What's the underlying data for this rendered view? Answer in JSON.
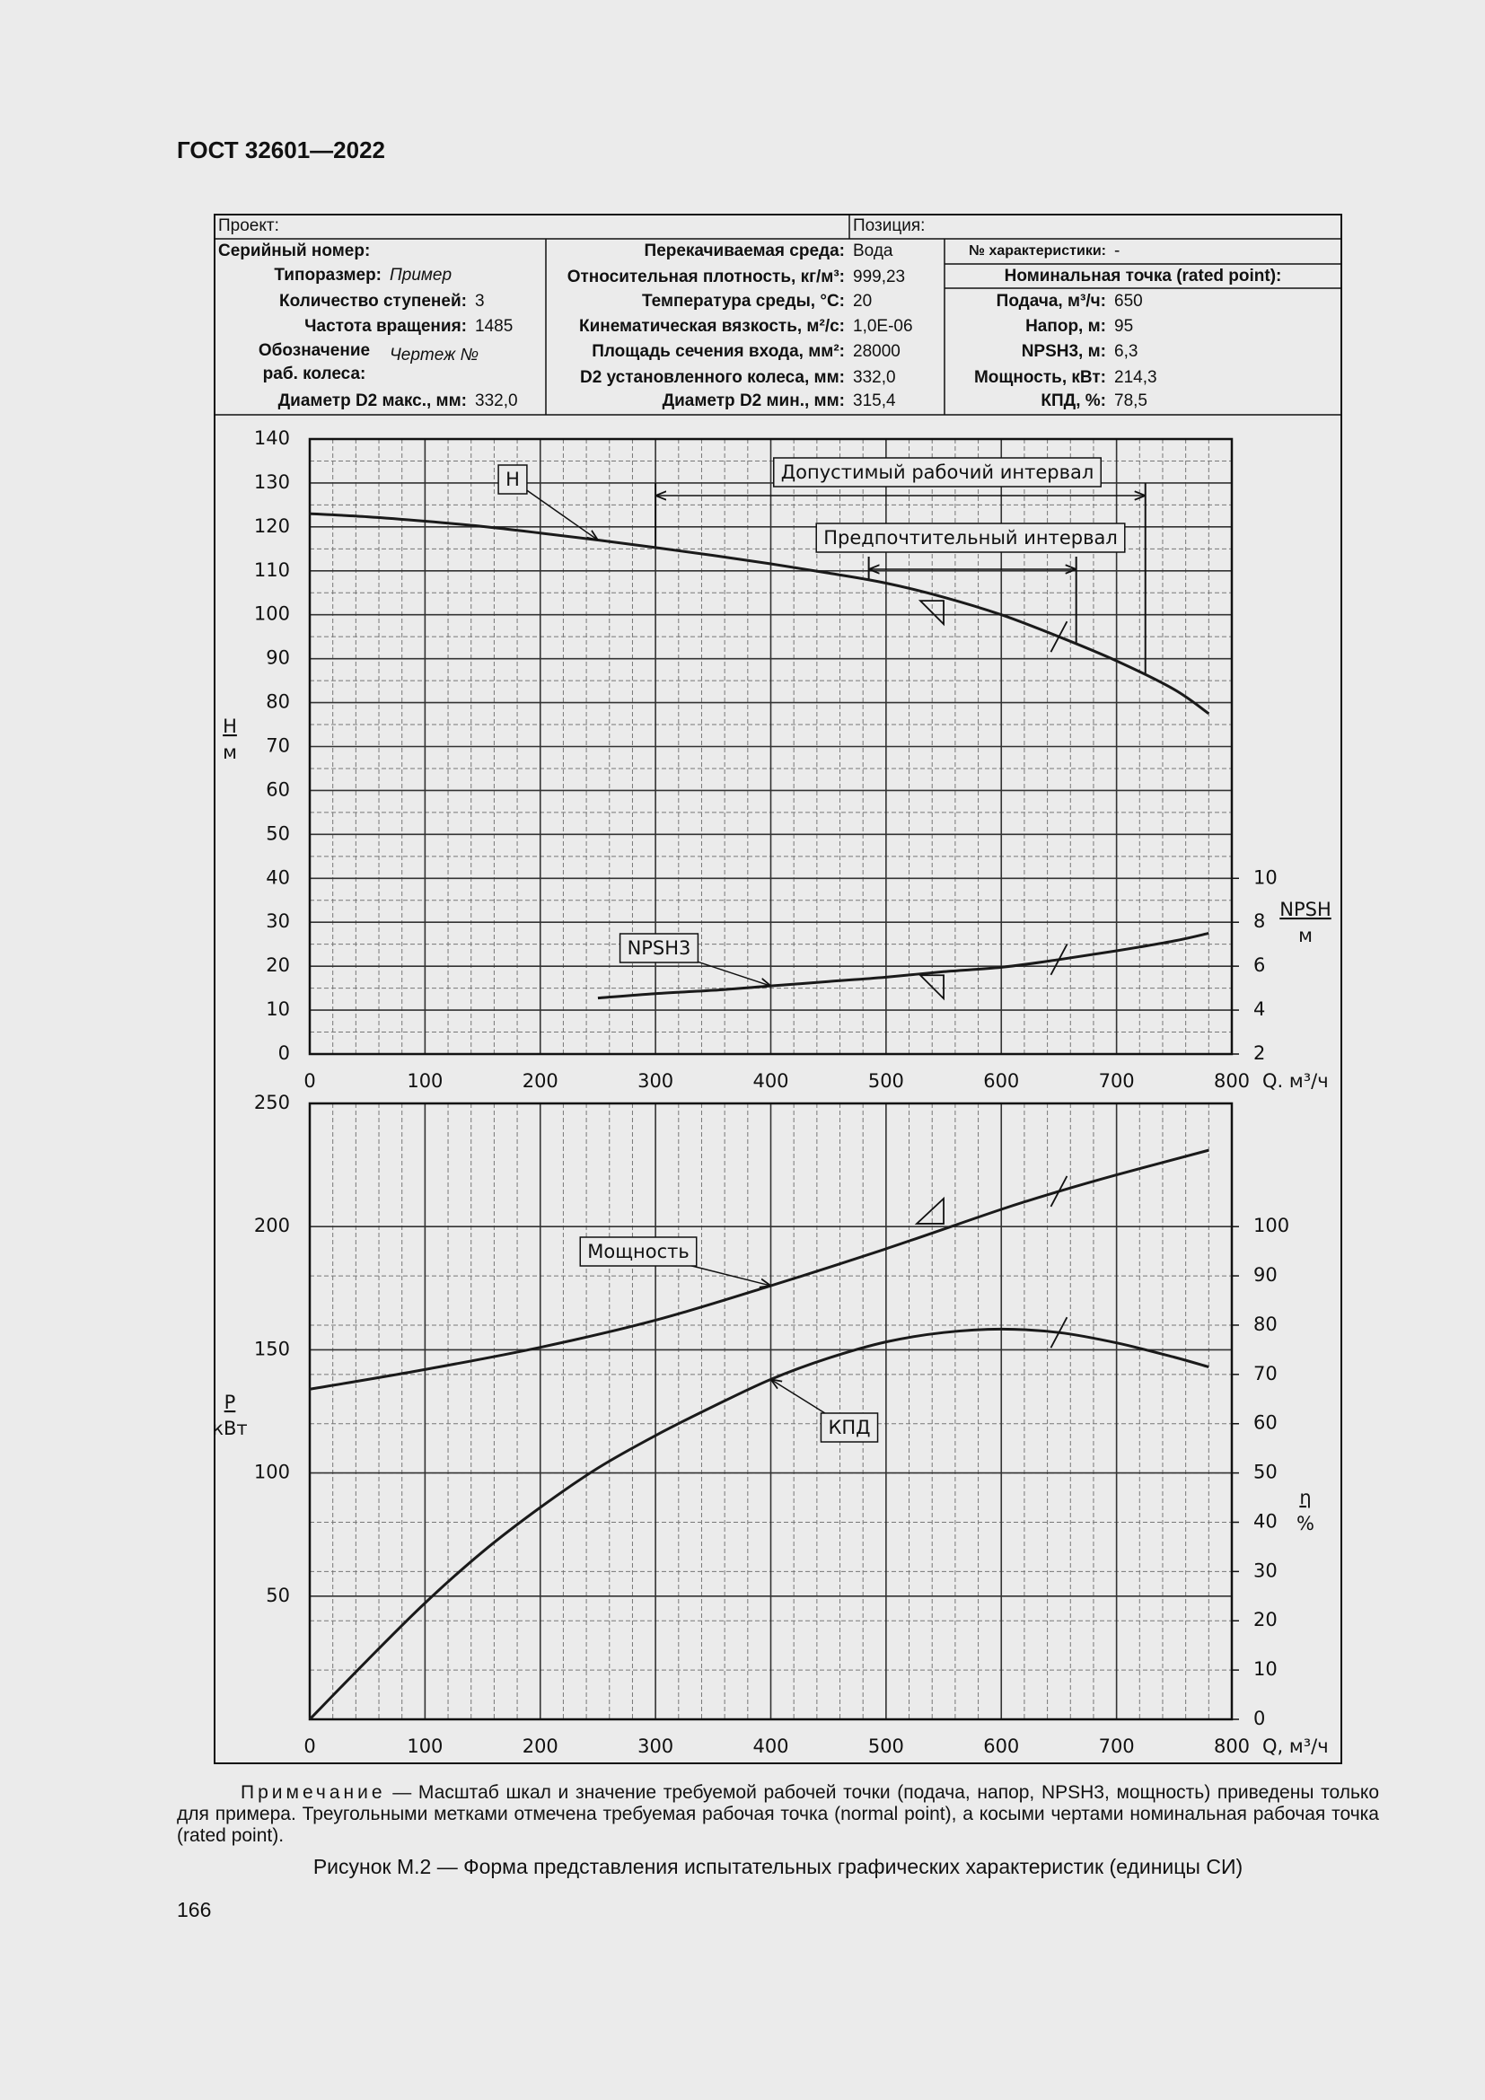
{
  "header": {
    "title": "ГОСТ 32601—2022"
  },
  "info_table": {
    "project": "Проект:",
    "position": "Позиция:",
    "columns": [
      [
        {
          "label": "Серийный номер:"
        },
        {
          "label": "Типоразмер:",
          "value": "Пример"
        },
        {
          "label": "Количество ступеней:",
          "value": "3"
        },
        {
          "label": "Частота вращения:",
          "value": "1485"
        },
        {
          "label": "Обозначение раб. колеса:",
          "value": "Чертеж №"
        },
        {
          "label": "Диаметр D2 макс., мм:",
          "value": "332,0"
        }
      ],
      [
        {
          "label": "Перекачиваемая среда:",
          "value": "Вода"
        },
        {
          "label": "Относительная плотность, кг/м³:",
          "value": "999,23"
        },
        {
          "label": "Температура среды, °С:",
          "value": "20"
        },
        {
          "label": "Кинематическая вязкость, м²/с:",
          "value": "1,0E-06"
        },
        {
          "label": "Площадь сечения входа, мм²:",
          "value": "28000"
        },
        {
          "label": "D2 установленного колеса, мм:",
          "value": "332,0"
        },
        {
          "label": "Диаметр D2 мин., мм:",
          "value": "315,4"
        }
      ],
      [
        {
          "label": "№ характеристики:",
          "value": "-"
        },
        {
          "label": "Номинальная  точка (rated point):"
        },
        {
          "label": "Подача, м³/ч:",
          "value": "650"
        },
        {
          "label": "Напор, м:",
          "value": "95"
        },
        {
          "label": "NPSH3, м:",
          "value": "6,3"
        },
        {
          "label": "Мощность, кВт:",
          "value": "214,3"
        },
        {
          "label": "КПД, %:",
          "value": "78,5"
        }
      ]
    ]
  },
  "chart_data": [
    {
      "type": "line",
      "x_label": "Q. м³/ч",
      "y_label": "H",
      "y_unit": "м",
      "y2_label": "NPSH",
      "y2_unit": "м",
      "xlim": [
        0,
        800
      ],
      "xticks": [
        0,
        100,
        200,
        300,
        400,
        500,
        600,
        700,
        800
      ],
      "ylim": [
        0,
        140
      ],
      "yticks": [
        0,
        10,
        20,
        30,
        40,
        50,
        60,
        70,
        80,
        90,
        100,
        110,
        120,
        130,
        140
      ],
      "y2lim": [
        2,
        30
      ],
      "y2ticks": [
        2,
        4,
        6,
        8,
        10
      ],
      "grid": true,
      "normal_point": 550,
      "rated_point": 650,
      "intervals": [
        {
          "label": "Допустимый рабочий интервал",
          "range": [
            300,
            725
          ]
        },
        {
          "label": "Предпочтительный интервал",
          "range": [
            485,
            665
          ]
        }
      ],
      "series": [
        {
          "name": "H",
          "color": "#1a1a1a",
          "normal_mark": true,
          "x": [
            0,
            50,
            100,
            150,
            200,
            250,
            300,
            350,
            400,
            450,
            500,
            550,
            600,
            650,
            700,
            750,
            780
          ],
          "values": [
            123,
            122.3,
            121.3,
            120.1,
            118.6,
            117,
            115.3,
            113.5,
            111.6,
            109.5,
            107.2,
            104,
            100,
            95,
            89.5,
            83,
            77.5
          ]
        },
        {
          "name": "NPSH3",
          "color": "#1a1a1a",
          "axis": "y2",
          "normal_mark": true,
          "x": [
            250,
            300,
            350,
            400,
            450,
            500,
            550,
            600,
            650,
            700,
            750,
            780
          ],
          "values": [
            4.55,
            4.75,
            4.9,
            5.1,
            5.3,
            5.5,
            5.75,
            5.95,
            6.3,
            6.7,
            7.15,
            7.5
          ]
        }
      ]
    },
    {
      "type": "line",
      "x_label": "Q, м³/ч",
      "y_label": "P",
      "y_unit": "кВт",
      "y2_label": "η",
      "y2_unit": "%",
      "xlim": [
        0,
        800
      ],
      "xticks": [
        0,
        100,
        200,
        300,
        400,
        500,
        600,
        700,
        800
      ],
      "ylim": [
        0,
        250
      ],
      "yticks": [
        50,
        100,
        150,
        200,
        250
      ],
      "y2lim": [
        0,
        125
      ],
      "y2ticks": [
        0,
        10,
        20,
        30,
        40,
        50,
        60,
        70,
        80,
        90,
        100
      ],
      "grid": true,
      "normal_point": 550,
      "rated_point": 650,
      "series": [
        {
          "name": "Мощность",
          "color": "#1a1a1a",
          "normal_mark": true,
          "x": [
            0,
            100,
            200,
            300,
            400,
            500,
            600,
            650,
            700,
            780
          ],
          "values": [
            134,
            142,
            151,
            162,
            176,
            191,
            207,
            214.3,
            221,
            231
          ]
        },
        {
          "name": "КПД",
          "color": "#1a1a1a",
          "axis": "y2",
          "x": [
            0,
            50,
            100,
            150,
            200,
            250,
            300,
            350,
            400,
            450,
            500,
            550,
            600,
            650,
            700,
            750,
            780
          ],
          "values": [
            0,
            12,
            23.6,
            34,
            43,
            51,
            57.6,
            63.5,
            69,
            73.3,
            76.6,
            78.5,
            79.2,
            78.5,
            76.4,
            73.5,
            71.5
          ]
        }
      ]
    }
  ],
  "note": {
    "label": "Примечание",
    "text": "— Масштаб шкал и значение требуемой рабочей точки (подача, напор, NPSH3, мощность) приведены только для примера. Треугольными метками отмечена требуемая рабочая точка (normal point), а косыми чертами номинальная рабочая точка (rated point)."
  },
  "caption": "Рисунок М.2 — Форма представления испытательных графических характеристик (единицы СИ)",
  "page_number": "166"
}
